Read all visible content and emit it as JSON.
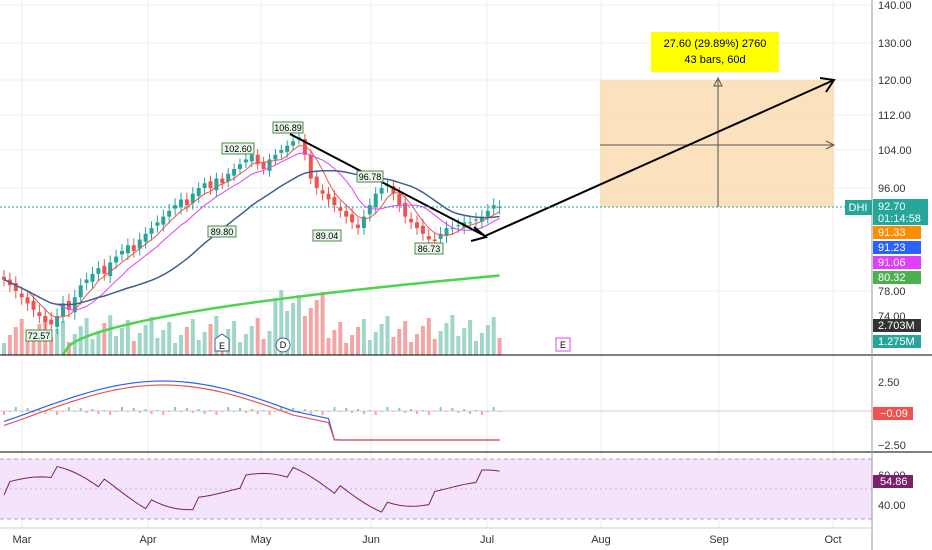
{
  "symbol": "DHI",
  "price_tag": {
    "value": "92.70",
    "countdown": "01:14:58",
    "color": "#26a69a"
  },
  "colors": {
    "up": "#26a69a",
    "down": "#ef5350",
    "ma_fast": "#ef5350",
    "ma_mid": "#e040fb",
    "ma_slow": "#3f5f8f",
    "ma_long": "#4cd44c",
    "macd": "#2962ff",
    "signal": "#ef5350",
    "rsi": "#7e1f6b",
    "rsi_band": "#f1dcfa",
    "box": "#fbd7a8",
    "highlight": "#ffff00"
  },
  "chart_data": [
    {
      "type": "candlestick",
      "name": "price",
      "y_ticks": [
        "140.00",
        "130.00",
        "120.00",
        "112.00",
        "104.00",
        "96.00",
        "78.00",
        "74.00"
      ],
      "x_ticks": [
        "Mar",
        "Apr",
        "May",
        "Jun",
        "Jul",
        "Aug",
        "Sep",
        "Oct"
      ],
      "last_price": 92.7,
      "ma_labels": [
        {
          "value": "91.33",
          "color": "#ff8c00"
        },
        {
          "value": "91.23",
          "color": "#2962ff"
        },
        {
          "value": "91.06",
          "color": "#e040fb"
        },
        {
          "value": "80.32",
          "color": "#4caf50"
        }
      ],
      "volume_labels": [
        {
          "value": "2.703M",
          "color": "#333333"
        },
        {
          "value": "1.275M",
          "color": "#26a69a"
        }
      ],
      "price_labels": [
        "106.89",
        "102.60",
        "96.78",
        "89.80",
        "89.04",
        "86.73",
        "72.57"
      ],
      "earnings_markers": [
        "E",
        "D",
        "E"
      ],
      "projection": {
        "text_line1": "27.60 (29.89%) 2760",
        "text_line2": "43 bars, 60d",
        "from": 92.3,
        "to": 120.0
      }
    },
    {
      "type": "line",
      "name": "macd",
      "y_ticks": [
        "2.50",
        "-2.50"
      ],
      "last_labels": [
        {
          "value": "-0.09",
          "color": "#ef5350"
        }
      ]
    },
    {
      "type": "line",
      "name": "rsi",
      "y_ticks": [
        "60.00",
        "40.00"
      ],
      "last_labels": [
        {
          "value": "54.86",
          "color": "#7e1f6b"
        }
      ]
    }
  ]
}
